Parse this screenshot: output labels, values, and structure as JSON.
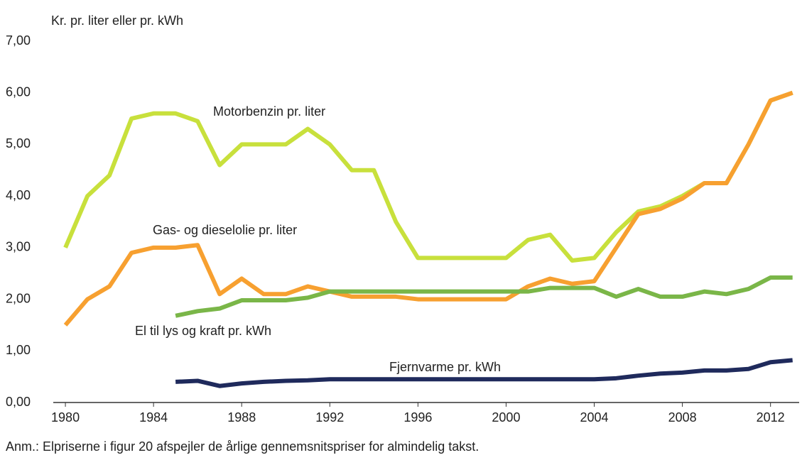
{
  "chart_data": {
    "type": "line",
    "y_label": "Kr. pr. liter eller pr. kWh",
    "note": "Anm.: Elpriserne i figur 20 afspejler de årlige gennemsnitspriser for almindelig takst.",
    "x": [
      1980,
      1981,
      1982,
      1983,
      1984,
      1985,
      1986,
      1987,
      1988,
      1989,
      1990,
      1991,
      1992,
      1993,
      1994,
      1995,
      1996,
      1997,
      1998,
      1999,
      2000,
      2001,
      2002,
      2003,
      2004,
      2005,
      2006,
      2007,
      2008,
      2009,
      2010,
      2011,
      2012,
      2013
    ],
    "series": [
      {
        "name": "Motorbenzin pr. liter",
        "color": "#c8e03c",
        "values": [
          3.0,
          4.0,
          4.4,
          5.5,
          5.6,
          5.6,
          5.45,
          4.6,
          5.0,
          5.0,
          5.0,
          5.3,
          5.0,
          4.5,
          4.5,
          3.5,
          2.8,
          2.8,
          2.8,
          2.8,
          2.8,
          3.15,
          3.25,
          2.75,
          2.8,
          3.3,
          3.7,
          3.8,
          4.0,
          4.25,
          4.25,
          5.0,
          5.85,
          6.0
        ]
      },
      {
        "name": "Gas- og dieselolie pr. liter",
        "color": "#f7a030",
        "values": [
          1.5,
          2.0,
          2.25,
          2.9,
          3.0,
          3.0,
          3.05,
          2.1,
          2.4,
          2.1,
          2.1,
          2.25,
          2.15,
          2.05,
          2.05,
          2.05,
          2.0,
          2.0,
          2.0,
          2.0,
          2.0,
          2.25,
          2.4,
          2.3,
          2.35,
          3.0,
          3.65,
          3.75,
          3.95,
          4.25,
          4.25,
          5.0,
          5.85,
          6.0
        ]
      },
      {
        "name": "El til lys og kraft pr. kWh",
        "color": "#7ab648",
        "values": [
          null,
          null,
          null,
          null,
          null,
          1.68,
          1.77,
          1.82,
          1.98,
          1.98,
          1.98,
          2.03,
          2.15,
          2.15,
          2.15,
          2.15,
          2.15,
          2.15,
          2.15,
          2.15,
          2.15,
          2.15,
          2.22,
          2.22,
          2.22,
          2.05,
          2.2,
          2.05,
          2.05,
          2.15,
          2.1,
          2.2,
          2.42,
          2.42
        ]
      },
      {
        "name": "Fjernvarme pr. kWh",
        "color": "#1f2a5c",
        "values": [
          null,
          null,
          null,
          null,
          null,
          0.4,
          0.42,
          0.32,
          0.37,
          0.4,
          0.42,
          0.43,
          0.45,
          0.45,
          0.45,
          0.45,
          0.45,
          0.45,
          0.45,
          0.45,
          0.45,
          0.45,
          0.45,
          0.45,
          0.45,
          0.47,
          0.52,
          0.56,
          0.58,
          0.62,
          0.62,
          0.65,
          0.78,
          0.82
        ]
      }
    ],
    "xlim": [
      1979.45,
      2013.3
    ],
    "xticks": [
      1980,
      1984,
      1988,
      1992,
      1996,
      2000,
      2004,
      2008,
      2012
    ],
    "ylim": [
      0,
      7
    ],
    "yticks": [
      {
        "value": 0,
        "label": "0,00"
      },
      {
        "value": 1,
        "label": "1,00"
      },
      {
        "value": 2,
        "label": "2,00"
      },
      {
        "value": 3,
        "label": "3,00"
      },
      {
        "value": 4,
        "label": "4,00"
      },
      {
        "value": 5,
        "label": "5,00"
      },
      {
        "value": 6,
        "label": "6,00"
      },
      {
        "value": 7,
        "label": "7,00"
      }
    ],
    "grid": false
  }
}
